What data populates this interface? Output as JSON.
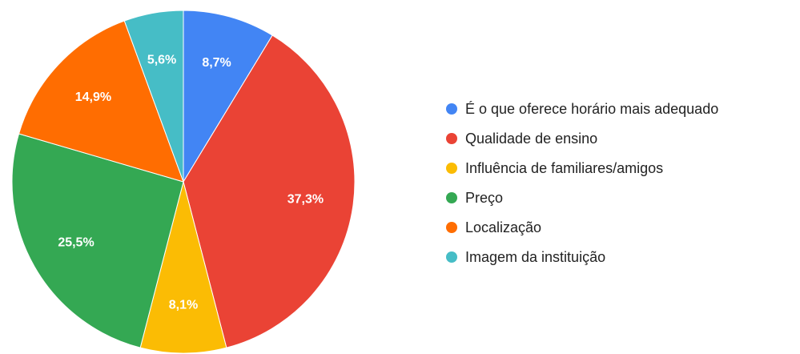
{
  "chart_data": {
    "type": "pie",
    "categories": [
      "É o que oferece horário mais adequado",
      "Qualidade de ensino",
      "Influência de familiares/amigos",
      "Preço",
      "Localização",
      "Imagem da instituição"
    ],
    "values": [
      8.7,
      37.3,
      8.1,
      25.5,
      14.9,
      5.6
    ],
    "value_labels": [
      "8,7%",
      "37,3%",
      "8,1%",
      "25,5%",
      "14,9%",
      "5,6%"
    ],
    "colors": [
      "#4285f4",
      "#ea4335",
      "#fbbc04",
      "#34a853",
      "#ff6d01",
      "#46bdc6"
    ],
    "legend": "right"
  }
}
